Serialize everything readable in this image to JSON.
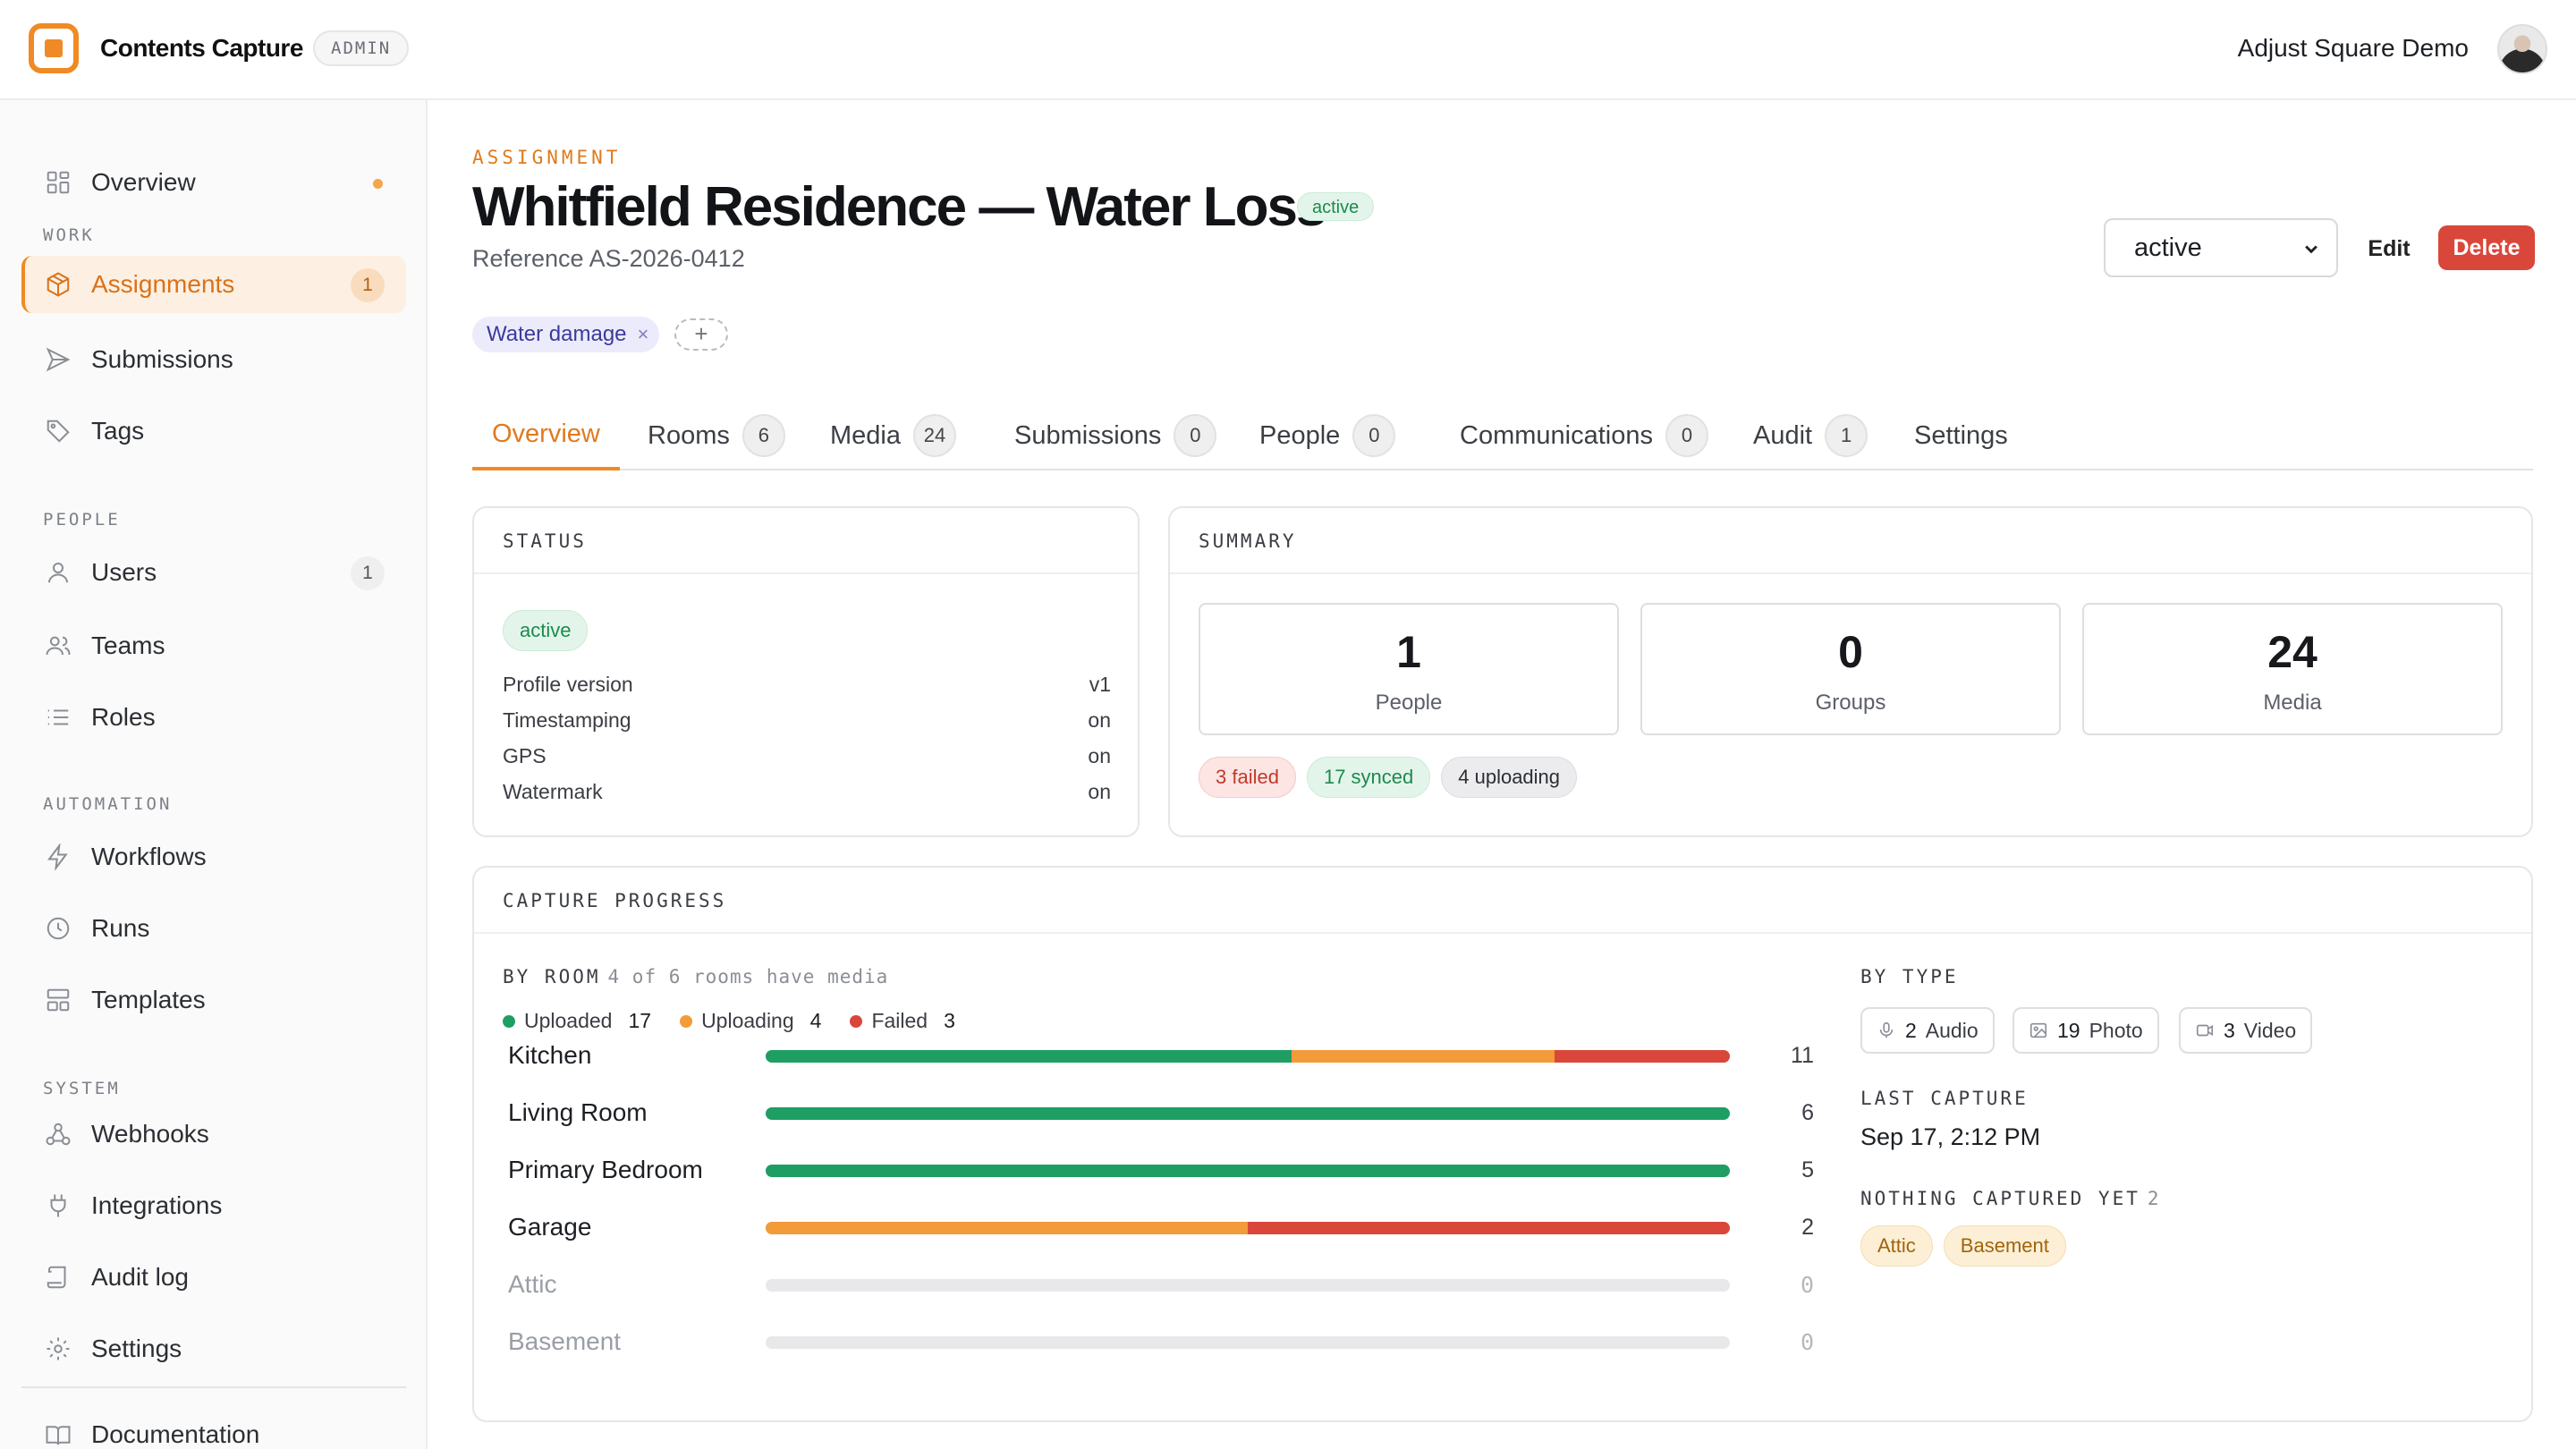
{
  "app": {
    "name": "Contents Capture",
    "role_badge": "ADMIN",
    "org_name": "Adjust Square Demo"
  },
  "sidebar": {
    "items": [
      {
        "label": "Overview",
        "icon": "grid-icon",
        "dot": true
      },
      {
        "label": "Assignments",
        "icon": "box-icon",
        "count": "1",
        "active": true
      },
      {
        "label": "Submissions",
        "icon": "send-icon"
      },
      {
        "label": "Tags",
        "icon": "tag-icon"
      },
      {
        "label": "Users",
        "icon": "user-icon",
        "count": "1"
      },
      {
        "label": "Teams",
        "icon": "users-icon"
      },
      {
        "label": "Roles",
        "icon": "list-icon"
      },
      {
        "label": "Workflows",
        "icon": "bolt-icon"
      },
      {
        "label": "Runs",
        "icon": "clock-icon"
      },
      {
        "label": "Templates",
        "icon": "template-icon"
      },
      {
        "label": "Webhooks",
        "icon": "webhook-icon"
      },
      {
        "label": "Integrations",
        "icon": "plug-icon"
      },
      {
        "label": "Audit log",
        "icon": "scroll-icon"
      },
      {
        "label": "Settings",
        "icon": "gear-icon"
      },
      {
        "label": "Documentation",
        "icon": "book-icon"
      }
    ],
    "sections": {
      "work": "WORK",
      "people": "PEOPLE",
      "automation": "AUTOMATION",
      "system": "SYSTEM"
    }
  },
  "header": {
    "eyebrow": "ASSIGNMENT",
    "title": "Whitfield Residence — Water Loss",
    "status_badge": "active",
    "reference": "Reference AS-2026-0412",
    "status_select_value": "active",
    "edit_label": "Edit",
    "delete_label": "Delete",
    "tag": "Water damage",
    "tag_remove": "×",
    "tag_add": "+"
  },
  "tabs": [
    {
      "label": "Overview",
      "active": true
    },
    {
      "label": "Rooms",
      "count": "6"
    },
    {
      "label": "Media",
      "count": "24"
    },
    {
      "label": "Submissions",
      "count": "0"
    },
    {
      "label": "People",
      "count": "0"
    },
    {
      "label": "Communications",
      "count": "0"
    },
    {
      "label": "Audit",
      "count": "1"
    },
    {
      "label": "Settings"
    }
  ],
  "status_card": {
    "heading": "STATUS",
    "badge": "active",
    "rows": [
      {
        "key": "Profile version",
        "value": "v1"
      },
      {
        "key": "Timestamping",
        "value": "on"
      },
      {
        "key": "GPS",
        "value": "on"
      },
      {
        "key": "Watermark",
        "value": "on"
      }
    ]
  },
  "summary_card": {
    "heading": "SUMMARY",
    "stats": [
      {
        "value": "1",
        "label": "People"
      },
      {
        "value": "0",
        "label": "Groups"
      },
      {
        "value": "24",
        "label": "Media"
      }
    ],
    "pills": {
      "failed": "3 failed",
      "synced": "17 synced",
      "uploading": "4 uploading"
    }
  },
  "capture": {
    "heading": "CAPTURE PROGRESS",
    "by_room_label": "BY ROOM",
    "by_room_note": "4 of 6 rooms have media",
    "legend": [
      {
        "label": "Uploaded",
        "value": "17",
        "color": "#1e9e63"
      },
      {
        "label": "Uploading",
        "value": "4",
        "color": "#f39a3a"
      },
      {
        "label": "Failed",
        "value": "3",
        "color": "#d9473b"
      }
    ],
    "rooms": [
      {
        "name": "Kitchen",
        "total": "11",
        "uploaded": 6,
        "uploading": 3,
        "failed": 2
      },
      {
        "name": "Living Room",
        "total": "6",
        "uploaded": 6,
        "uploading": 0,
        "failed": 0
      },
      {
        "name": "Primary Bedroom",
        "total": "5",
        "uploaded": 5,
        "uploading": 0,
        "failed": 0
      },
      {
        "name": "Garage",
        "total": "2",
        "uploaded": 0,
        "uploading": 1,
        "failed": 1
      },
      {
        "name": "Attic",
        "total": "0",
        "uploaded": 0,
        "uploading": 0,
        "failed": 0
      },
      {
        "name": "Basement",
        "total": "0",
        "uploaded": 0,
        "uploading": 0,
        "failed": 0
      }
    ],
    "by_type_label": "BY TYPE",
    "types": [
      {
        "count": "2",
        "label": "Audio",
        "icon": "mic-icon"
      },
      {
        "count": "19",
        "label": "Photo",
        "icon": "image-icon"
      },
      {
        "count": "3",
        "label": "Video",
        "icon": "video-icon"
      }
    ],
    "last_capture_label": "LAST CAPTURE",
    "last_capture_value": "Sep 17, 2:12 PM",
    "nothing_label": "NOTHING CAPTURED YET",
    "nothing_count": "2",
    "nothing_rooms": [
      "Attic",
      "Basement"
    ]
  }
}
